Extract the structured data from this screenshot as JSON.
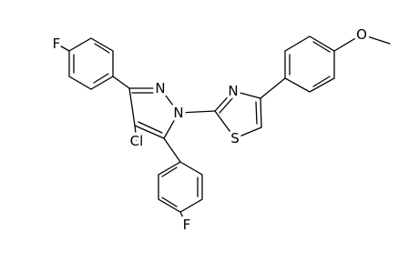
{
  "atoms": {
    "fluorine_top": "F",
    "pyrazole_n2": "N",
    "pyrazole_n1": "N",
    "chlorine": "Cl",
    "fluorine_bottom": "F",
    "thiazole_n": "N",
    "thiazole_s": "S",
    "methoxy_o": "O"
  }
}
